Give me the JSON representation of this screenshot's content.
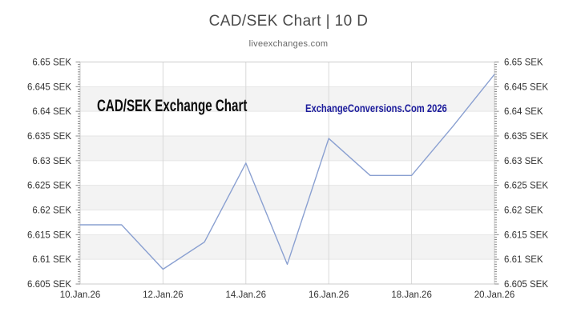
{
  "page": {
    "title": "CAD/SEK Chart | 10 D",
    "subtitle": "liveexchanges.com"
  },
  "annotations": {
    "watermark_left": "CAD/SEK Exchange Chart",
    "watermark_left_color": "#0d0d0d",
    "watermark_right": "ExchangeConversions.Com 2026",
    "watermark_right_color": "#1c1c9c"
  },
  "chart_data": {
    "type": "line",
    "title": "CAD/SEK Chart | 10 D",
    "subtitle": "liveexchanges.com",
    "x": [
      "10.Jan.26",
      "11.Jan.26",
      "12.Jan.26",
      "13.Jan.26",
      "14.Jan.26",
      "15.Jan.26",
      "16.Jan.26",
      "17.Jan.26",
      "18.Jan.26",
      "19.Jan.26",
      "20.Jan.26"
    ],
    "x_tick_labels": [
      "10.Jan.26",
      "12.Jan.26",
      "14.Jan.26",
      "16.Jan.26",
      "18.Jan.26",
      "20.Jan.26"
    ],
    "series": [
      {
        "name": "CAD/SEK",
        "values": [
          6.617,
          6.617,
          6.608,
          6.6135,
          6.6295,
          6.609,
          6.6345,
          6.627,
          6.627,
          6.637,
          6.6475
        ]
      }
    ],
    "ylim": [
      6.605,
      6.65
    ],
    "y_ticks": [
      6.65,
      6.645,
      6.64,
      6.635,
      6.63,
      6.625,
      6.62,
      6.615,
      6.61,
      6.605
    ],
    "y_tick_labels": [
      "6.65 SEK",
      "6.645 SEK",
      "6.64 SEK",
      "6.635 SEK",
      "6.63 SEK",
      "6.625 SEK",
      "6.62 SEK",
      "6.615 SEK",
      "6.61 SEK",
      "6.605 SEK"
    ],
    "y_minor_step": 0.0005,
    "xlabel": "",
    "ylabel": "",
    "legend": "none",
    "grid": true,
    "line_color": "#8aa0d1",
    "band_color": "#f3f3f3",
    "grid_color_h": "#e6e6e6",
    "grid_color_v": "#d9d9d9",
    "border_color": "#cccccc",
    "tick_color": "#8c8c8c",
    "axis_label_color": "#333333"
  }
}
